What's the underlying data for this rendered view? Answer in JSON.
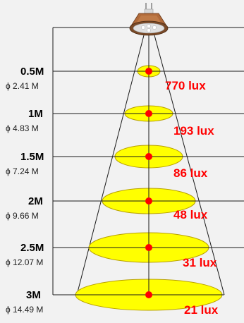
{
  "colors": {
    "background": "#f2f2f2",
    "ellipse_fill": "#ffff00",
    "ellipse_stroke": "#b8a000",
    "dot": "#ff0000",
    "lux_text": "#ff0000",
    "line": "#1a1a1a",
    "label_text": "#000000"
  },
  "lamp": {
    "icon": "mr16-led-spotlight-icon"
  },
  "levels": [
    {
      "distance": "0.5M",
      "diameter": "ϕ 2.41 M",
      "lux": "770 lux"
    },
    {
      "distance": "1M",
      "diameter": "ϕ 4.83 M",
      "lux": "193 lux"
    },
    {
      "distance": "1.5M",
      "diameter": "ϕ 7.24 M",
      "lux": "86 lux"
    },
    {
      "distance": "2M",
      "diameter": "ϕ 9.66 M",
      "lux": "48 lux"
    },
    {
      "distance": "2.5M",
      "diameter": "ϕ 12.07 M",
      "lux": "31 lux"
    },
    {
      "distance": "3M",
      "diameter": "ϕ 14.49 M",
      "lux": "21 lux"
    }
  ]
}
